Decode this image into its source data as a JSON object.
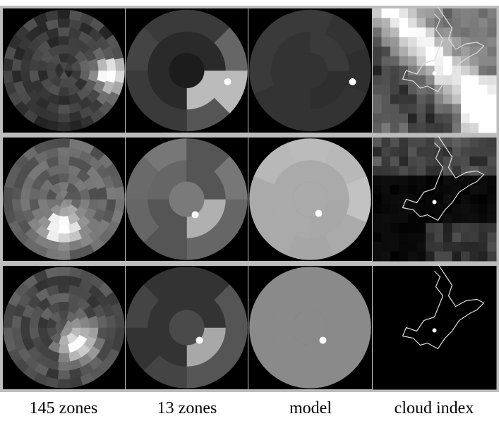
{
  "captions": [
    "145 zones",
    "13 zones",
    "model",
    "cloud index"
  ]
}
